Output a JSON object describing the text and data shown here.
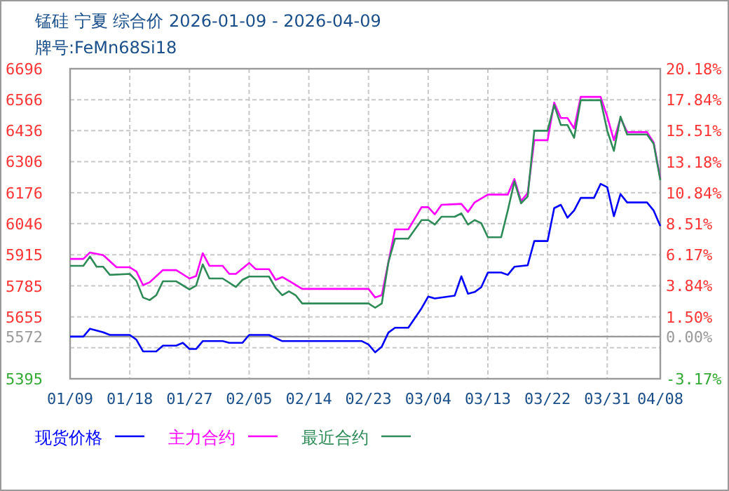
{
  "chart_data": {
    "type": "line",
    "title": "锰硅 宁夏 综合价 2026-01-09 - 2026-04-09",
    "subtitle": "牌号:FeMn68Si18",
    "xlim": [
      "2026-01-09",
      "2026-04-08"
    ],
    "xticks": [
      {
        "value": "2026-01-09",
        "label": "01/09"
      },
      {
        "value": "2026-01-18",
        "label": "01/18"
      },
      {
        "value": "2026-01-27",
        "label": "01/27"
      },
      {
        "value": "2026-02-05",
        "label": "02/05"
      },
      {
        "value": "2026-02-14",
        "label": "02/14"
      },
      {
        "value": "2026-02-23",
        "label": "02/23"
      },
      {
        "value": "2026-03-04",
        "label": "03/04"
      },
      {
        "value": "2026-03-13",
        "label": "03/13"
      },
      {
        "value": "2026-03-22",
        "label": "03/22"
      },
      {
        "value": "2026-03-31",
        "label": "03/31"
      },
      {
        "value": "2026-04-08",
        "label": "04/08"
      }
    ],
    "ylim": [
      5395,
      6696
    ],
    "yticks": [
      5395,
      {
        "value": 5525,
        "label": null
      },
      5572,
      5655,
      5785,
      5915,
      6046,
      6176,
      6306,
      6436,
      6566,
      6696
    ],
    "y2lim": [
      -3.17,
      20.18
    ],
    "y2ticks": [
      {
        "value": -3.17,
        "label": "-3.17%"
      },
      {
        "value": -0.84,
        "label": null
      },
      {
        "value": 0,
        "label": "0.00%"
      },
      {
        "value": 1.5,
        "label": "1.50%"
      },
      {
        "value": 3.84,
        "label": "3.84%"
      },
      {
        "value": 6.17,
        "label": "6.17%"
      },
      {
        "value": 8.51,
        "label": "8.51%"
      },
      {
        "value": 10.84,
        "label": "10.84%"
      },
      {
        "value": 13.18,
        "label": "13.18%"
      },
      {
        "value": 15.51,
        "label": "15.51%"
      },
      {
        "value": 17.84,
        "label": "17.84%"
      },
      {
        "value": 20.18,
        "label": "20.18%"
      }
    ],
    "ref_lines": [
      {
        "axis": "y",
        "value": 5572,
        "color": "#999999"
      }
    ],
    "grid": true,
    "legend": "bottom",
    "marker": "none",
    "line_style": "solid",
    "series": [
      {
        "name": "现货价格",
        "color": "#0000ff",
        "x": [
          "2026-01-09",
          "2026-01-11",
          "2026-01-12",
          "2026-01-14",
          "2026-01-15",
          "2026-01-18",
          "2026-01-19",
          "2026-01-20",
          "2026-01-22",
          "2026-01-23",
          "2026-01-25",
          "2026-01-26",
          "2026-01-27",
          "2026-01-28",
          "2026-01-29",
          "2026-02-01",
          "2026-02-02",
          "2026-02-04",
          "2026-02-05",
          "2026-02-08",
          "2026-02-10",
          "2026-02-22",
          "2026-02-23",
          "2026-02-24",
          "2026-02-25",
          "2026-02-26",
          "2026-02-27",
          "2026-03-01",
          "2026-03-03",
          "2026-03-04",
          "2026-03-05",
          "2026-03-08",
          "2026-03-09",
          "2026-03-10",
          "2026-03-11",
          "2026-03-12",
          "2026-03-13",
          "2026-03-15",
          "2026-03-16",
          "2026-03-17",
          "2026-03-19",
          "2026-03-20",
          "2026-03-22",
          "2026-03-23",
          "2026-03-24",
          "2026-03-25",
          "2026-03-26",
          "2026-03-27",
          "2026-03-29",
          "2026-03-30",
          "2026-03-31",
          "2026-04-01",
          "2026-04-02",
          "2026-04-03",
          "2026-04-06",
          "2026-04-07",
          "2026-04-08"
        ],
        "values": [
          5572,
          5572,
          5605,
          5590,
          5579,
          5579,
          5559,
          5510,
          5510,
          5534,
          5534,
          5546,
          5520,
          5520,
          5553,
          5553,
          5546,
          5546,
          5579,
          5579,
          5553,
          5553,
          5539,
          5506,
          5530,
          5589,
          5609,
          5609,
          5691,
          5740,
          5732,
          5744,
          5825,
          5752,
          5759,
          5779,
          5841,
          5841,
          5831,
          5865,
          5871,
          5973,
          5973,
          6111,
          6125,
          6071,
          6101,
          6154,
          6154,
          6213,
          6199,
          6077,
          6170,
          6135,
          6135,
          6101,
          6036
        ]
      },
      {
        "name": "主力合约",
        "color": "#ff00ff",
        "x": [
          "2026-01-09",
          "2026-01-11",
          "2026-01-12",
          "2026-01-14",
          "2026-01-16",
          "2026-01-18",
          "2026-01-19",
          "2026-01-20",
          "2026-01-21",
          "2026-01-23",
          "2026-01-25",
          "2026-01-27",
          "2026-01-28",
          "2026-01-29",
          "2026-01-30",
          "2026-02-01",
          "2026-02-02",
          "2026-02-03",
          "2026-02-05",
          "2026-02-06",
          "2026-02-08",
          "2026-02-09",
          "2026-02-10",
          "2026-02-11",
          "2026-02-13",
          "2026-02-23",
          "2026-02-24",
          "2026-02-25",
          "2026-02-26",
          "2026-02-27",
          "2026-03-01",
          "2026-03-03",
          "2026-03-04",
          "2026-03-05",
          "2026-03-06",
          "2026-03-09",
          "2026-03-10",
          "2026-03-11",
          "2026-03-13",
          "2026-03-16",
          "2026-03-17",
          "2026-03-18",
          "2026-03-19",
          "2026-03-20",
          "2026-03-22",
          "2026-03-23",
          "2026-03-24",
          "2026-03-25",
          "2026-03-26",
          "2026-03-27",
          "2026-03-30",
          "2026-03-31",
          "2026-04-01",
          "2026-04-02",
          "2026-04-03",
          "2026-04-06",
          "2026-04-07",
          "2026-04-08"
        ],
        "values": [
          5898,
          5898,
          5925,
          5914,
          5863,
          5863,
          5845,
          5788,
          5800,
          5851,
          5851,
          5816,
          5826,
          5922,
          5869,
          5869,
          5835,
          5835,
          5881,
          5855,
          5855,
          5810,
          5822,
          5806,
          5772,
          5772,
          5736,
          5746,
          5884,
          6022,
          6022,
          6115,
          6115,
          6085,
          6125,
          6129,
          6095,
          6135,
          6168,
          6168,
          6233,
          6141,
          6174,
          6396,
          6396,
          6554,
          6489,
          6489,
          6446,
          6578,
          6578,
          6495,
          6396,
          6489,
          6430,
          6430,
          6386,
          6235
        ]
      },
      {
        "name": "最近合约",
        "color": "#2e8b57",
        "x": [
          "2026-01-09",
          "2026-01-11",
          "2026-01-12",
          "2026-01-13",
          "2026-01-14",
          "2026-01-15",
          "2026-01-18",
          "2026-01-19",
          "2026-01-20",
          "2026-01-21",
          "2026-01-22",
          "2026-01-23",
          "2026-01-25",
          "2026-01-27",
          "2026-01-28",
          "2026-01-29",
          "2026-01-30",
          "2026-02-01",
          "2026-02-03",
          "2026-02-04",
          "2026-02-05",
          "2026-02-08",
          "2026-02-09",
          "2026-02-10",
          "2026-02-11",
          "2026-02-12",
          "2026-02-13",
          "2026-02-23",
          "2026-02-24",
          "2026-02-25",
          "2026-02-26",
          "2026-02-27",
          "2026-03-01",
          "2026-03-03",
          "2026-03-04",
          "2026-03-05",
          "2026-03-06",
          "2026-03-08",
          "2026-03-09",
          "2026-03-10",
          "2026-03-11",
          "2026-03-12",
          "2026-03-13",
          "2026-03-15",
          "2026-03-16",
          "2026-03-17",
          "2026-03-18",
          "2026-03-19",
          "2026-03-20",
          "2026-03-22",
          "2026-03-23",
          "2026-03-24",
          "2026-03-25",
          "2026-03-26",
          "2026-03-27",
          "2026-03-30",
          "2026-03-31",
          "2026-04-01",
          "2026-04-02",
          "2026-04-03",
          "2026-04-06",
          "2026-04-07",
          "2026-04-08"
        ],
        "values": [
          5869,
          5869,
          5908,
          5865,
          5865,
          5831,
          5835,
          5806,
          5736,
          5725,
          5746,
          5804,
          5804,
          5770,
          5786,
          5875,
          5816,
          5816,
          5780,
          5810,
          5824,
          5824,
          5776,
          5746,
          5762,
          5746,
          5711,
          5711,
          5693,
          5711,
          5884,
          5983,
          5983,
          6061,
          6061,
          6042,
          6075,
          6075,
          6089,
          6042,
          6061,
          6048,
          5989,
          5989,
          6101,
          6223,
          6131,
          6160,
          6436,
          6436,
          6544,
          6460,
          6460,
          6406,
          6564,
          6564,
          6436,
          6351,
          6495,
          6420,
          6420,
          6381,
          6229
        ]
      }
    ]
  }
}
